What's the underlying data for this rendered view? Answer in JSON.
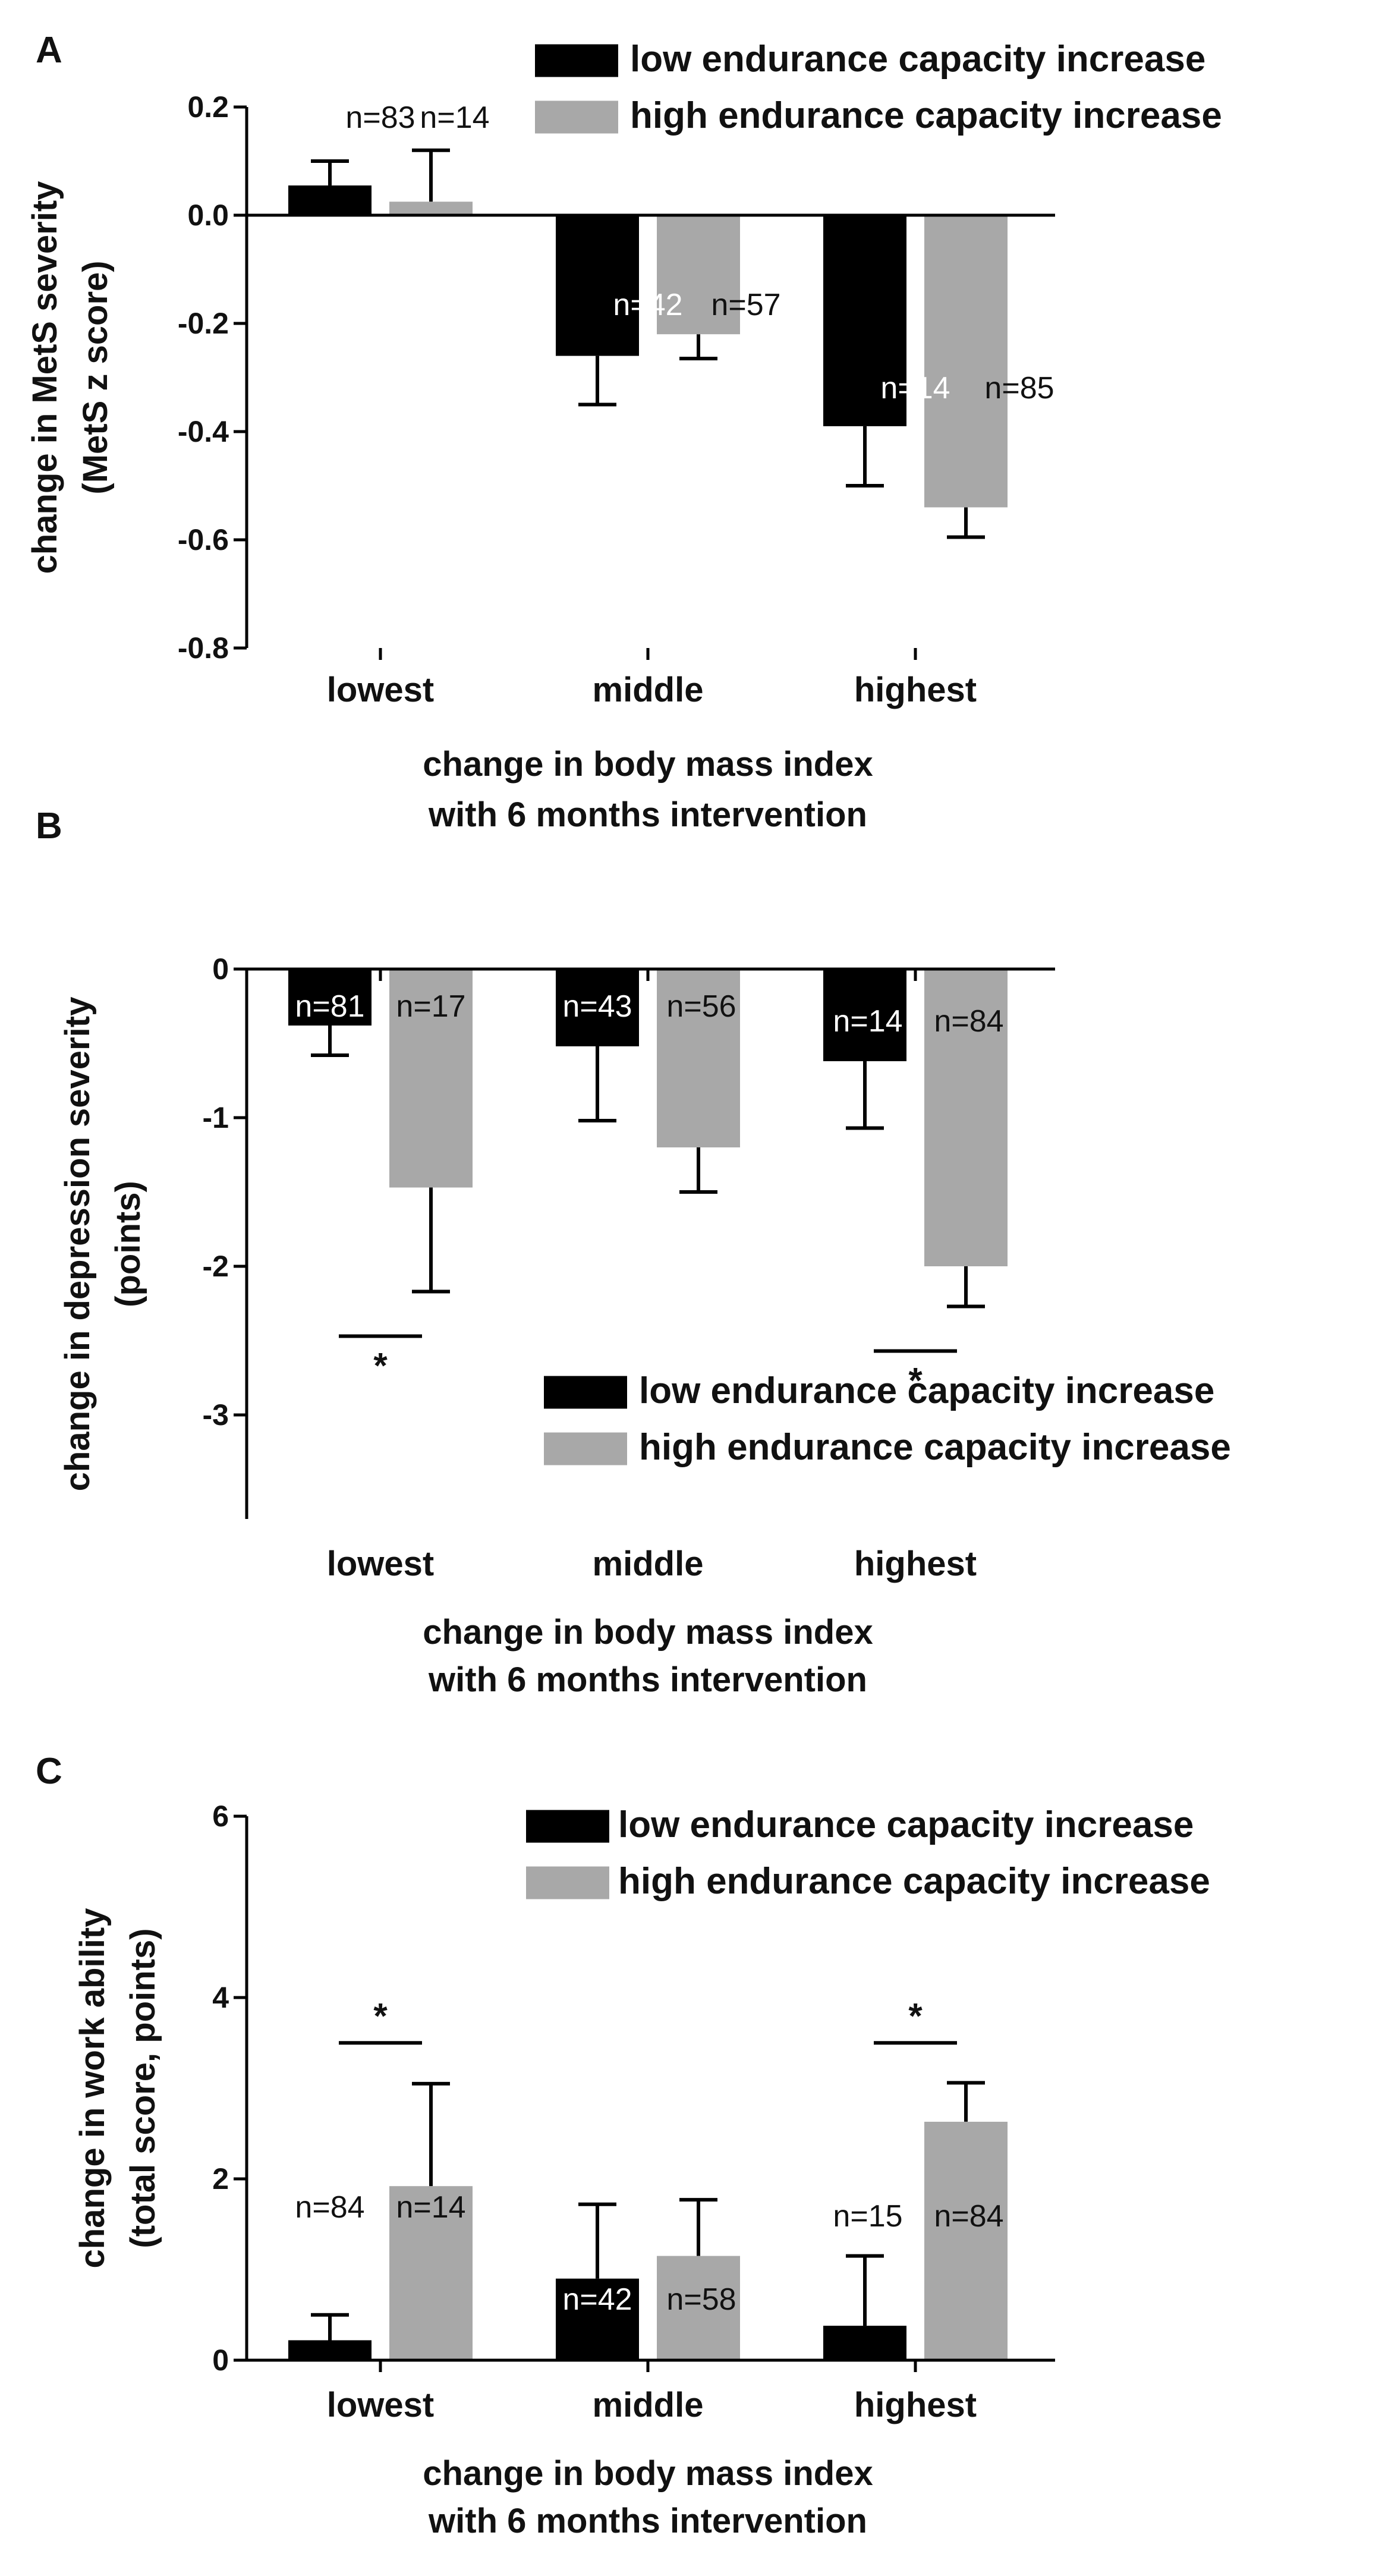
{
  "chart_data": [
    {
      "type": "bar",
      "panel": "A",
      "categories": [
        "lowest",
        "middle",
        "highest"
      ],
      "series": [
        {
          "name": "low endurance capacity increase",
          "color": "#000000",
          "values": [
            0.055,
            -0.26,
            -0.39
          ],
          "errors": [
            0.045,
            0.09,
            0.11
          ],
          "n": [
            "n=83",
            "n=42",
            "n=14"
          ]
        },
        {
          "name": "high endurance capacity increase",
          "color": "#a8a8a8",
          "values": [
            0.025,
            -0.22,
            -0.54
          ],
          "errors": [
            0.095,
            0.045,
            0.055
          ],
          "n": [
            "n=14",
            "n=57",
            "n=85"
          ]
        }
      ],
      "ylim": [
        -0.8,
        0.2
      ],
      "yticks": [
        "0.2",
        "0.0",
        "-0.2",
        "-0.4",
        "-0.6",
        "-0.8"
      ],
      "ylabel": [
        "change in MetS severity",
        "(MetS z score)"
      ],
      "xlabel": [
        "change in body mass index",
        "with 6 months intervention"
      ],
      "legend_position": "top-right",
      "significance": []
    },
    {
      "type": "bar",
      "panel": "B",
      "categories": [
        "lowest",
        "middle",
        "highest"
      ],
      "series": [
        {
          "name": "low endurance capacity increase",
          "color": "#000000",
          "values": [
            -0.38,
            -0.52,
            -0.62
          ],
          "errors": [
            0.2,
            0.5,
            0.45
          ],
          "n": [
            "n=81",
            "n=43",
            "n=14"
          ]
        },
        {
          "name": "high endurance capacity increase",
          "color": "#a8a8a8",
          "values": [
            -1.47,
            -1.2,
            -2.0
          ],
          "errors": [
            0.7,
            0.3,
            0.27
          ],
          "n": [
            "n=17",
            "n=56",
            "n=84"
          ]
        }
      ],
      "ylim": [
        -3.7,
        0
      ],
      "yticks": [
        "0",
        "-1",
        "-2",
        "-3"
      ],
      "ylabel": [
        "change in depression severity",
        "(points)"
      ],
      "xlabel": [
        "change in body mass index",
        "with 6 months intervention"
      ],
      "legend_position": "bottom-right",
      "significance": [
        {
          "category": "lowest",
          "label": "*",
          "line_y": -2.47
        },
        {
          "category": "highest",
          "label": "*",
          "line_y": -2.57
        }
      ]
    },
    {
      "type": "bar",
      "panel": "C",
      "categories": [
        "lowest",
        "middle",
        "highest"
      ],
      "series": [
        {
          "name": "low endurance capacity increase",
          "color": "#000000",
          "values": [
            0.22,
            0.9,
            0.38
          ],
          "errors": [
            0.28,
            0.82,
            0.77
          ],
          "n": [
            "n=84",
            "n=42",
            "n=15"
          ]
        },
        {
          "name": "high endurance capacity increase",
          "color": "#a8a8a8",
          "values": [
            1.92,
            1.15,
            2.63
          ],
          "errors": [
            1.13,
            0.62,
            0.43
          ],
          "n": [
            "n=14",
            "n=58",
            "n=84"
          ]
        }
      ],
      "ylim": [
        0,
        6
      ],
      "yticks": [
        "6",
        "4",
        "2",
        "0"
      ],
      "ylabel": [
        "change in work ability",
        "(total score, points)"
      ],
      "xlabel": [
        "change in body mass index",
        "with 6 months intervention"
      ],
      "legend_position": "top-right",
      "significance": [
        {
          "category": "lowest",
          "label": "*",
          "line_y": 3.5
        },
        {
          "category": "highest",
          "label": "*",
          "line_y": 3.5
        }
      ]
    }
  ]
}
